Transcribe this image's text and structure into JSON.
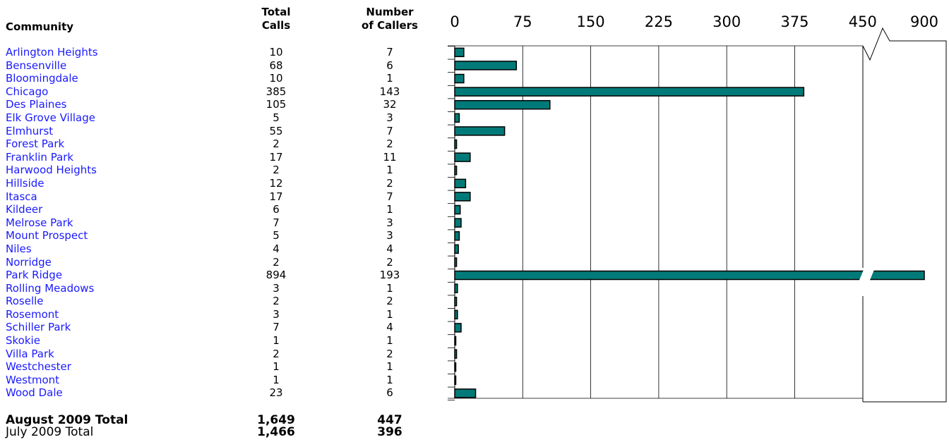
{
  "headers": {
    "community": "Community",
    "total_calls": [
      "Total",
      "Calls"
    ],
    "number_of_callers": [
      "Number",
      "of Callers"
    ]
  },
  "rows": [
    {
      "community": "Arlington Heights",
      "calls": "10",
      "callers": "7"
    },
    {
      "community": "Bensenville",
      "calls": "68",
      "callers": "6"
    },
    {
      "community": "Bloomingdale",
      "calls": "10",
      "callers": "1"
    },
    {
      "community": "Chicago",
      "calls": "385",
      "callers": "143"
    },
    {
      "community": "Des Plaines",
      "calls": "105",
      "callers": "32"
    },
    {
      "community": "Elk Grove Village",
      "calls": "5",
      "callers": "3"
    },
    {
      "community": "Elmhurst",
      "calls": "55",
      "callers": "7"
    },
    {
      "community": "Forest Park",
      "calls": "2",
      "callers": "2"
    },
    {
      "community": "Franklin Park",
      "calls": "17",
      "callers": "11"
    },
    {
      "community": "Harwood Heights",
      "calls": "2",
      "callers": "1"
    },
    {
      "community": "Hillside",
      "calls": "12",
      "callers": "2"
    },
    {
      "community": "Itasca",
      "calls": "17",
      "callers": "7"
    },
    {
      "community": "Kildeer",
      "calls": "6",
      "callers": "1"
    },
    {
      "community": "Melrose Park",
      "calls": "7",
      "callers": "3"
    },
    {
      "community": "Mount Prospect",
      "calls": "5",
      "callers": "3"
    },
    {
      "community": "Niles",
      "calls": "4",
      "callers": "4"
    },
    {
      "community": "Norridge",
      "calls": "2",
      "callers": "2"
    },
    {
      "community": "Park Ridge",
      "calls": "894",
      "callers": "193"
    },
    {
      "community": "Rolling Meadows",
      "calls": "3",
      "callers": "1"
    },
    {
      "community": "Roselle",
      "calls": "2",
      "callers": "2"
    },
    {
      "community": "Rosemont",
      "calls": "3",
      "callers": "1"
    },
    {
      "community": "Schiller Park",
      "calls": "7",
      "callers": "4"
    },
    {
      "community": "Skokie",
      "calls": "1",
      "callers": "1"
    },
    {
      "community": "Villa Park",
      "calls": "2",
      "callers": "2"
    },
    {
      "community": "Westchester",
      "calls": "1",
      "callers": "1"
    },
    {
      "community": "Westmont",
      "calls": "1",
      "callers": "1"
    },
    {
      "community": "Wood Dale",
      "calls": "23",
      "callers": "6"
    }
  ],
  "totals": [
    {
      "label": "August 2009 Total",
      "calls": "1,649",
      "callers": "447",
      "bold": true
    },
    {
      "label": "July 2009 Total",
      "calls": "1,466",
      "callers": "396",
      "bold": false
    }
  ],
  "chart_data": {
    "type": "bar",
    "orientation": "horizontal",
    "categories": [
      "Arlington Heights",
      "Bensenville",
      "Bloomingdale",
      "Chicago",
      "Des Plaines",
      "Elk Grove Village",
      "Elmhurst",
      "Forest Park",
      "Franklin Park",
      "Harwood Heights",
      "Hillside",
      "Itasca",
      "Kildeer",
      "Melrose Park",
      "Mount Prospect",
      "Niles",
      "Norridge",
      "Park Ridge",
      "Rolling Meadows",
      "Roselle",
      "Rosemont",
      "Schiller Park",
      "Skokie",
      "Villa Park",
      "Westchester",
      "Westmont",
      "Wood Dale"
    ],
    "values": [
      10,
      68,
      10,
      385,
      105,
      5,
      55,
      2,
      17,
      2,
      12,
      17,
      6,
      7,
      5,
      4,
      2,
      894,
      3,
      2,
      3,
      7,
      1,
      2,
      1,
      1,
      23
    ],
    "xticks": [
      "0",
      "75",
      "150",
      "225",
      "300",
      "375",
      "450",
      "900"
    ],
    "xlim": [
      0,
      450
    ],
    "axis_break": {
      "from": 450,
      "to": 900
    },
    "grid": true,
    "bar_color": "#007a78",
    "bar_edge_color": "#000000"
  }
}
